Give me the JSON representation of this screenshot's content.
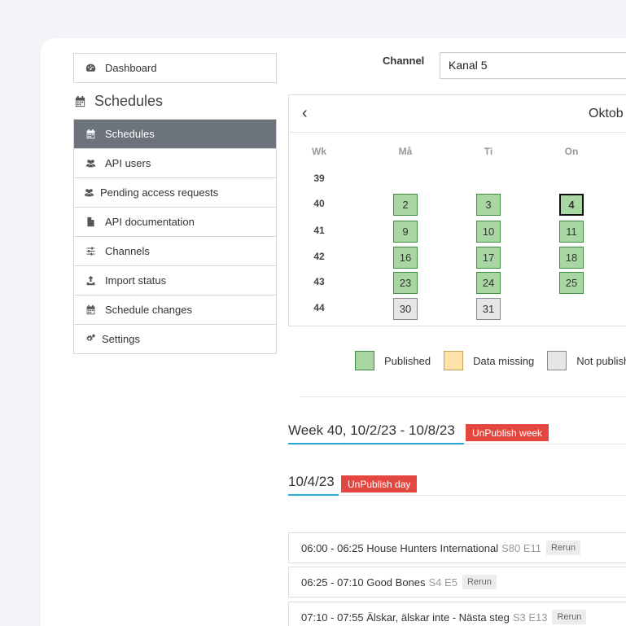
{
  "sidebar": {
    "dashboard_label": "Dashboard",
    "section_title": "Schedules",
    "items": [
      {
        "label": "Schedules",
        "icon": "calendar-icon",
        "active": true
      },
      {
        "label": "API users",
        "icon": "users-icon"
      },
      {
        "label": "Pending access requests",
        "icon": "users-icon"
      },
      {
        "label": "API documentation",
        "icon": "file-icon"
      },
      {
        "label": "Channels",
        "icon": "sliders-icon"
      },
      {
        "label": "Import status",
        "icon": "upload-icon"
      },
      {
        "label": "Schedule changes",
        "icon": "calendar-icon"
      },
      {
        "label": "Settings",
        "icon": "gears-icon"
      }
    ]
  },
  "channel": {
    "label": "Channel",
    "value": "Kanal 5"
  },
  "calendar": {
    "prev": "‹",
    "month": "Oktob",
    "col_headers": [
      "Wk",
      "Må",
      "Ti",
      "On"
    ],
    "weeks": [
      {
        "wk": "39",
        "days": [
          null,
          null,
          null
        ]
      },
      {
        "wk": "40",
        "days": [
          "2",
          "3",
          "4"
        ]
      },
      {
        "wk": "41",
        "days": [
          "9",
          "10",
          "11"
        ]
      },
      {
        "wk": "42",
        "days": [
          "16",
          "17",
          "18"
        ]
      },
      {
        "wk": "43",
        "days": [
          "23",
          "24",
          "25"
        ]
      },
      {
        "wk": "44",
        "days": [
          "30",
          "31",
          null
        ]
      }
    ],
    "today": "4"
  },
  "legend": [
    {
      "label": "Published",
      "color": "#a9d7a4"
    },
    {
      "label": "Data missing",
      "color": "#fde3a7"
    },
    {
      "label": "Not publish",
      "color": "#e6e6e6"
    }
  ],
  "week": {
    "title": "Week 40, 10/2/23 - 10/8/23",
    "button": "UnPublish week"
  },
  "day": {
    "title": "10/4/23",
    "button": "UnPublish day"
  },
  "programs": [
    {
      "time": "06:00 - 06:25 House Hunters International",
      "ep": "S80 E11",
      "tag": "Rerun"
    },
    {
      "time": "06:25 - 07:10 Good Bones",
      "ep": "S4 E5",
      "tag": "Rerun"
    },
    {
      "time": "07:10 - 07:55 Älskar, älskar inte - Nästa steg",
      "ep": "S3 E13",
      "tag": "Rerun"
    }
  ]
}
